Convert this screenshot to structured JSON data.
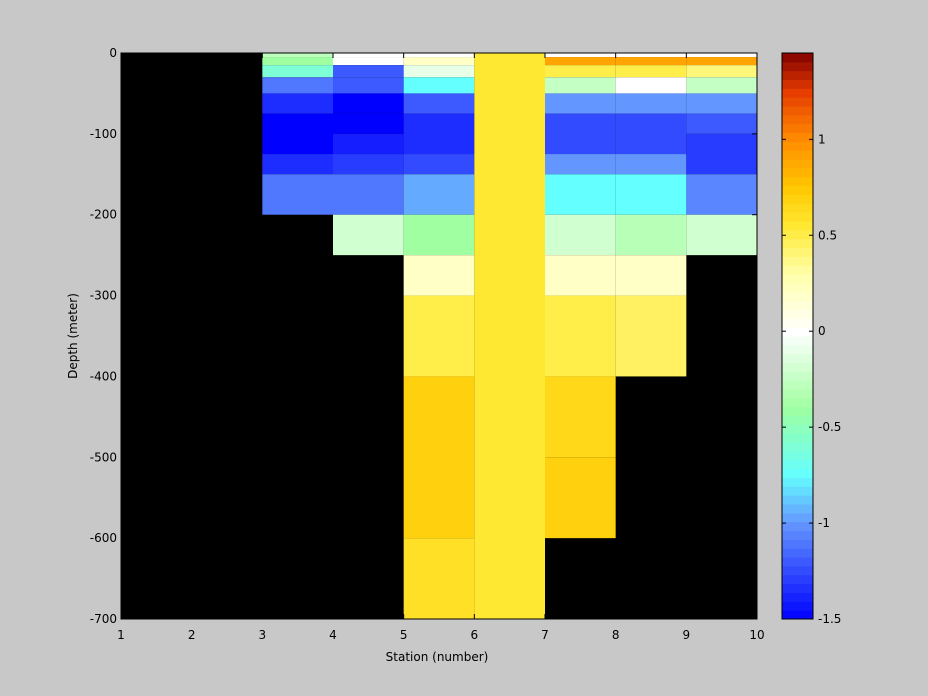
{
  "chart_data": {
    "type": "heatmap",
    "title": "",
    "xlabel": "Station (number)",
    "ylabel": "Depth (meter)",
    "xlim": [
      1,
      10
    ],
    "ylim": [
      -700,
      0
    ],
    "xticks": [
      1,
      2,
      3,
      4,
      5,
      6,
      7,
      8,
      9,
      10
    ],
    "yticks": [
      0,
      -100,
      -200,
      -300,
      -400,
      -500,
      -600,
      -700
    ],
    "background_color": "#000000",
    "colorbar": {
      "colormap": "jet-like, white at 0",
      "clim": [
        -1.5,
        1.45
      ],
      "ticks": [
        1,
        0.5,
        0,
        -0.5,
        -1,
        -1.5
      ],
      "tick_labels": [
        "1",
        "0.5",
        "0",
        "-0.5",
        "-1",
        "-1.5"
      ]
    },
    "cells": [
      {
        "station": [
          3,
          4
        ],
        "depth": [
          0,
          -5
        ],
        "value": -0.28
      },
      {
        "station": [
          3,
          4
        ],
        "depth": [
          -5,
          -15
        ],
        "value": -0.4
      },
      {
        "station": [
          3,
          4
        ],
        "depth": [
          -15,
          -30
        ],
        "value": -0.6
      },
      {
        "station": [
          3,
          4
        ],
        "depth": [
          -30,
          -50
        ],
        "value": -1.1
      },
      {
        "station": [
          3,
          4
        ],
        "depth": [
          -50,
          -75
        ],
        "value": -1.35
      },
      {
        "station": [
          3,
          4
        ],
        "depth": [
          -75,
          -125
        ],
        "value": -1.5
      },
      {
        "station": [
          3,
          4
        ],
        "depth": [
          -125,
          -150
        ],
        "value": -1.35
      },
      {
        "station": [
          3,
          4
        ],
        "depth": [
          -150,
          -200
        ],
        "value": -1.1
      },
      {
        "station": [
          4,
          5
        ],
        "depth": [
          0,
          -5
        ],
        "value": 0.0
      },
      {
        "station": [
          4,
          5
        ],
        "depth": [
          -5,
          -15
        ],
        "value": 0.0
      },
      {
        "station": [
          4,
          5
        ],
        "depth": [
          -15,
          -30
        ],
        "value": -1.2
      },
      {
        "station": [
          4,
          5
        ],
        "depth": [
          -30,
          -50
        ],
        "value": -1.2
      },
      {
        "station": [
          4,
          5
        ],
        "depth": [
          -50,
          -75
        ],
        "value": -1.5
      },
      {
        "station": [
          4,
          5
        ],
        "depth": [
          -75,
          -100
        ],
        "value": -1.5
      },
      {
        "station": [
          4,
          5
        ],
        "depth": [
          -100,
          -125
        ],
        "value": -1.4
      },
      {
        "station": [
          4,
          5
        ],
        "depth": [
          -125,
          -150
        ],
        "value": -1.3
      },
      {
        "station": [
          4,
          5
        ],
        "depth": [
          -150,
          -200
        ],
        "value": -1.1
      },
      {
        "station": [
          4,
          5
        ],
        "depth": [
          -200,
          -250
        ],
        "value": -0.2
      },
      {
        "station": [
          5,
          6
        ],
        "depth": [
          0,
          -5
        ],
        "value": 0.0
      },
      {
        "station": [
          5,
          6
        ],
        "depth": [
          -5,
          -15
        ],
        "value": 0.2
      },
      {
        "station": [
          5,
          6
        ],
        "depth": [
          -15,
          -30
        ],
        "value": -0.1
      },
      {
        "station": [
          5,
          6
        ],
        "depth": [
          -30,
          -50
        ],
        "value": -0.75
      },
      {
        "station": [
          5,
          6
        ],
        "depth": [
          -50,
          -75
        ],
        "value": -1.2
      },
      {
        "station": [
          5,
          6
        ],
        "depth": [
          -75,
          -125
        ],
        "value": -1.35
      },
      {
        "station": [
          5,
          6
        ],
        "depth": [
          -125,
          -150
        ],
        "value": -1.25
      },
      {
        "station": [
          5,
          6
        ],
        "depth": [
          -150,
          -200
        ],
        "value": -0.95
      },
      {
        "station": [
          5,
          6
        ],
        "depth": [
          -200,
          -250
        ],
        "value": -0.4
      },
      {
        "station": [
          5,
          6
        ],
        "depth": [
          -250,
          -300
        ],
        "value": 0.2
      },
      {
        "station": [
          5,
          6
        ],
        "depth": [
          -300,
          -400
        ],
        "value": 0.5
      },
      {
        "station": [
          5,
          6
        ],
        "depth": [
          -400,
          -600
        ],
        "value": 0.7
      },
      {
        "station": [
          5,
          6
        ],
        "depth": [
          -600,
          -700
        ],
        "value": 0.6
      },
      {
        "station": [
          6,
          7
        ],
        "depth": [
          0,
          -700
        ],
        "value": 0.55
      },
      {
        "station": [
          7,
          8
        ],
        "depth": [
          0,
          -5
        ],
        "value": 0.0
      },
      {
        "station": [
          7,
          8
        ],
        "depth": [
          -5,
          -15
        ],
        "value": 0.9
      },
      {
        "station": [
          7,
          8
        ],
        "depth": [
          -15,
          -30
        ],
        "value": 0.5
      },
      {
        "station": [
          7,
          8
        ],
        "depth": [
          -30,
          -50
        ],
        "value": -0.25
      },
      {
        "station": [
          7,
          8
        ],
        "depth": [
          -50,
          -75
        ],
        "value": -1.0
      },
      {
        "station": [
          7,
          8
        ],
        "depth": [
          -75,
          -125
        ],
        "value": -1.25
      },
      {
        "station": [
          7,
          8
        ],
        "depth": [
          -125,
          -150
        ],
        "value": -1.0
      },
      {
        "station": [
          7,
          8
        ],
        "depth": [
          -150,
          -200
        ],
        "value": -0.75
      },
      {
        "station": [
          7,
          8
        ],
        "depth": [
          -200,
          -250
        ],
        "value": -0.2
      },
      {
        "station": [
          7,
          8
        ],
        "depth": [
          -250,
          -300
        ],
        "value": 0.2
      },
      {
        "station": [
          7,
          8
        ],
        "depth": [
          -300,
          -400
        ],
        "value": 0.5
      },
      {
        "station": [
          7,
          8
        ],
        "depth": [
          -400,
          -500
        ],
        "value": 0.65
      },
      {
        "station": [
          7,
          8
        ],
        "depth": [
          -500,
          -600
        ],
        "value": 0.7
      },
      {
        "station": [
          8,
          9
        ],
        "depth": [
          0,
          -5
        ],
        "value": 0.0
      },
      {
        "station": [
          8,
          9
        ],
        "depth": [
          -5,
          -15
        ],
        "value": 0.9
      },
      {
        "station": [
          8,
          9
        ],
        "depth": [
          -15,
          -30
        ],
        "value": 0.5
      },
      {
        "station": [
          8,
          9
        ],
        "depth": [
          -30,
          -50
        ],
        "value": 0.0
      },
      {
        "station": [
          8,
          9
        ],
        "depth": [
          -50,
          -75
        ],
        "value": -1.0
      },
      {
        "station": [
          8,
          9
        ],
        "depth": [
          -75,
          -125
        ],
        "value": -1.25
      },
      {
        "station": [
          8,
          9
        ],
        "depth": [
          -125,
          -150
        ],
        "value": -1.0
      },
      {
        "station": [
          8,
          9
        ],
        "depth": [
          -150,
          -200
        ],
        "value": -0.75
      },
      {
        "station": [
          8,
          9
        ],
        "depth": [
          -200,
          -250
        ],
        "value": -0.3
      },
      {
        "station": [
          8,
          9
        ],
        "depth": [
          -250,
          -300
        ],
        "value": 0.2
      },
      {
        "station": [
          8,
          9
        ],
        "depth": [
          -300,
          -400
        ],
        "value": 0.45
      },
      {
        "station": [
          9,
          10
        ],
        "depth": [
          0,
          -5
        ],
        "value": 0.0
      },
      {
        "station": [
          9,
          10
        ],
        "depth": [
          -5,
          -15
        ],
        "value": 0.9
      },
      {
        "station": [
          9,
          10
        ],
        "depth": [
          -15,
          -30
        ],
        "value": 0.4
      },
      {
        "station": [
          9,
          10
        ],
        "depth": [
          -30,
          -50
        ],
        "value": -0.25
      },
      {
        "station": [
          9,
          10
        ],
        "depth": [
          -50,
          -75
        ],
        "value": -1.0
      },
      {
        "station": [
          9,
          10
        ],
        "depth": [
          -75,
          -100
        ],
        "value": -1.2
      },
      {
        "station": [
          9,
          10
        ],
        "depth": [
          -100,
          -150
        ],
        "value": -1.3
      },
      {
        "station": [
          9,
          10
        ],
        "depth": [
          -150,
          -200
        ],
        "value": -1.05
      },
      {
        "station": [
          9,
          10
        ],
        "depth": [
          -200,
          -250
        ],
        "value": -0.2
      }
    ]
  }
}
